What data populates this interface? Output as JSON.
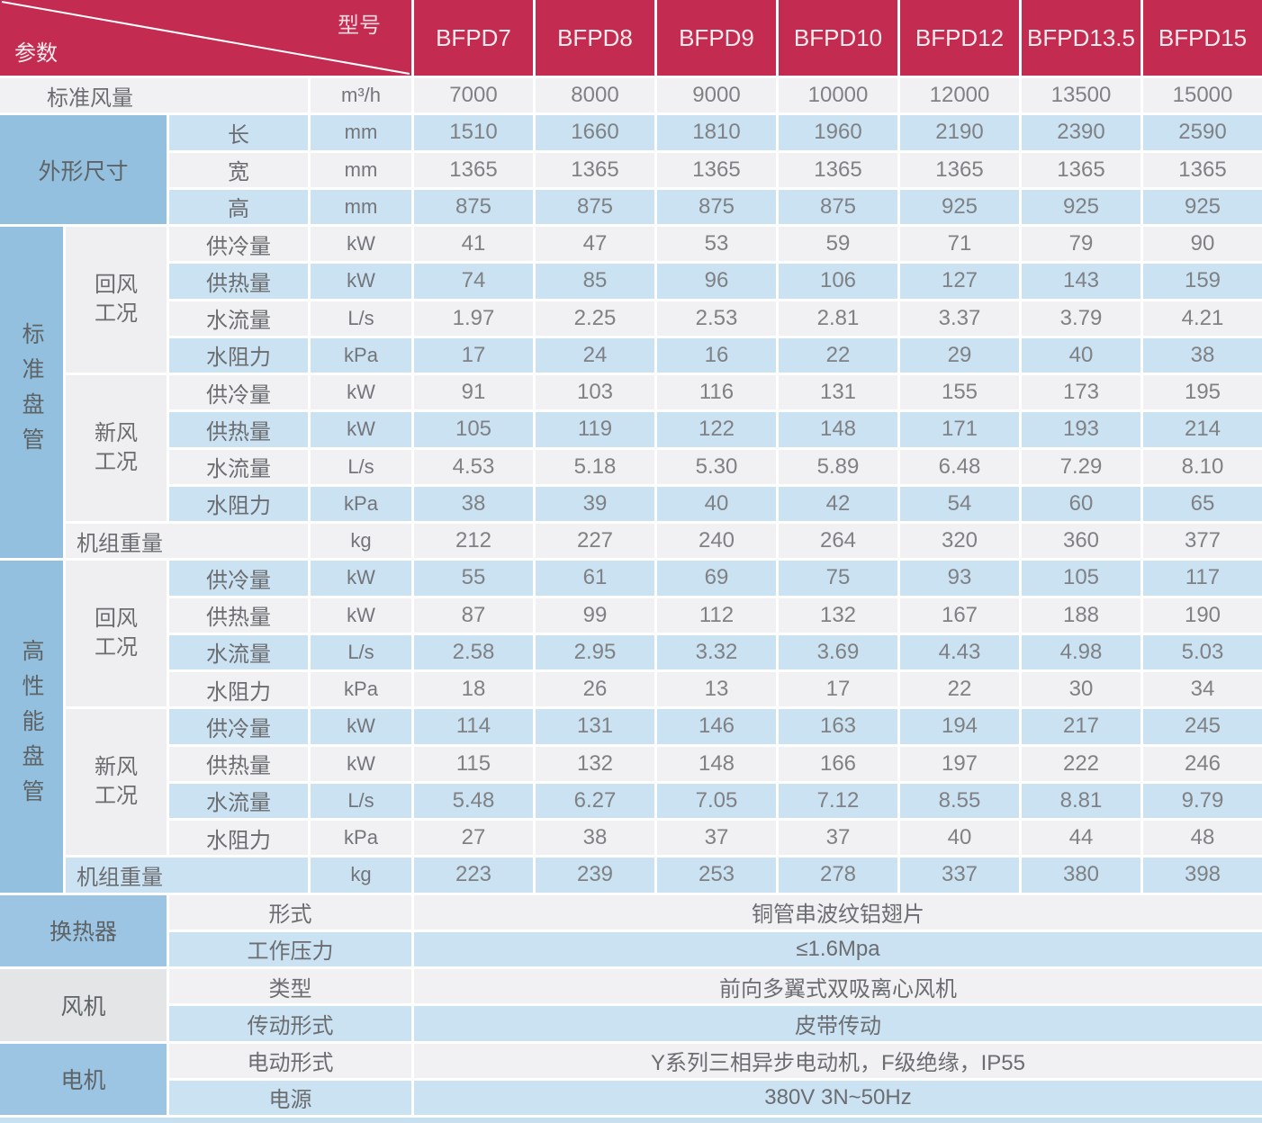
{
  "colors": {
    "header_red": "#C32B50",
    "group_blue": "#93C0DF",
    "panel_blue": "#9CC5E4",
    "panel_gray": "#E4E5E7",
    "row_gray": "#F1F1F3",
    "row_blue": "#CBE2F2"
  },
  "header": {
    "corner_top_label": "型号",
    "corner_bottom_label": "参数",
    "models": [
      "BFPD7",
      "BFPD8",
      "BFPD9",
      "BFPD10",
      "BFPD12",
      "BFPD13.5",
      "BFPD15"
    ]
  },
  "airflow": {
    "label": "标准风量",
    "unit": "m³/h",
    "values": [
      "7000",
      "8000",
      "9000",
      "10000",
      "12000",
      "13500",
      "15000"
    ]
  },
  "dimensions": {
    "group": "外形尺寸",
    "rows": [
      {
        "label": "长",
        "unit": "mm",
        "values": [
          "1510",
          "1660",
          "1810",
          "1960",
          "2190",
          "2390",
          "2590"
        ]
      },
      {
        "label": "宽",
        "unit": "mm",
        "values": [
          "1365",
          "1365",
          "1365",
          "1365",
          "1365",
          "1365",
          "1365"
        ]
      },
      {
        "label": "高",
        "unit": "mm",
        "values": [
          "875",
          "875",
          "875",
          "875",
          "925",
          "925",
          "925"
        ]
      }
    ]
  },
  "standard_coil": {
    "group": "标准盘管",
    "return_air": {
      "label": "回风工况",
      "rows": [
        {
          "label": "供冷量",
          "unit": "kW",
          "values": [
            "41",
            "47",
            "53",
            "59",
            "71",
            "79",
            "90"
          ]
        },
        {
          "label": "供热量",
          "unit": "kW",
          "values": [
            "74",
            "85",
            "96",
            "106",
            "127",
            "143",
            "159"
          ]
        },
        {
          "label": "水流量",
          "unit": "L/s",
          "values": [
            "1.97",
            "2.25",
            "2.53",
            "2.81",
            "3.37",
            "3.79",
            "4.21"
          ]
        },
        {
          "label": "水阻力",
          "unit": "kPa",
          "values": [
            "17",
            "24",
            "16",
            "22",
            "29",
            "40",
            "38"
          ]
        }
      ]
    },
    "fresh_air": {
      "label": "新风工况",
      "rows": [
        {
          "label": "供冷量",
          "unit": "kW",
          "values": [
            "91",
            "103",
            "116",
            "131",
            "155",
            "173",
            "195"
          ]
        },
        {
          "label": "供热量",
          "unit": "kW",
          "values": [
            "105",
            "119",
            "122",
            "148",
            "171",
            "193",
            "214"
          ]
        },
        {
          "label": "水流量",
          "unit": "L/s",
          "values": [
            "4.53",
            "5.18",
            "5.30",
            "5.89",
            "6.48",
            "7.29",
            "8.10"
          ]
        },
        {
          "label": "水阻力",
          "unit": "kPa",
          "values": [
            "38",
            "39",
            "40",
            "42",
            "54",
            "60",
            "65"
          ]
        }
      ]
    },
    "weight": {
      "label": "机组重量",
      "unit": "kg",
      "values": [
        "212",
        "227",
        "240",
        "264",
        "320",
        "360",
        "377"
      ]
    }
  },
  "high_performance_coil": {
    "group": "高性能盘管",
    "return_air": {
      "label": "回风工况",
      "rows": [
        {
          "label": "供冷量",
          "unit": "kW",
          "values": [
            "55",
            "61",
            "69",
            "75",
            "93",
            "105",
            "117"
          ]
        },
        {
          "label": "供热量",
          "unit": "kW",
          "values": [
            "87",
            "99",
            "112",
            "132",
            "167",
            "188",
            "190"
          ]
        },
        {
          "label": "水流量",
          "unit": "L/s",
          "values": [
            "2.58",
            "2.95",
            "3.32",
            "3.69",
            "4.43",
            "4.98",
            "5.03"
          ]
        },
        {
          "label": "水阻力",
          "unit": "kPa",
          "values": [
            "18",
            "26",
            "13",
            "17",
            "22",
            "30",
            "34"
          ]
        }
      ]
    },
    "fresh_air": {
      "label": "新风工况",
      "rows": [
        {
          "label": "供冷量",
          "unit": "kW",
          "values": [
            "114",
            "131",
            "146",
            "163",
            "194",
            "217",
            "245"
          ]
        },
        {
          "label": "供热量",
          "unit": "kW",
          "values": [
            "115",
            "132",
            "148",
            "166",
            "197",
            "222",
            "246"
          ]
        },
        {
          "label": "水流量",
          "unit": "L/s",
          "values": [
            "5.48",
            "6.27",
            "7.05",
            "7.12",
            "8.55",
            "8.81",
            "9.79"
          ]
        },
        {
          "label": "水阻力",
          "unit": "kPa",
          "values": [
            "27",
            "38",
            "37",
            "37",
            "40",
            "44",
            "48"
          ]
        }
      ]
    },
    "weight": {
      "label": "机组重量",
      "unit": "kg",
      "values": [
        "223",
        "239",
        "253",
        "278",
        "337",
        "380",
        "398"
      ]
    }
  },
  "specs": {
    "heat_exchanger": {
      "group": "换热器",
      "rows": [
        {
          "label": "形式",
          "value": "铜管串波纹铝翅片"
        },
        {
          "label": "工作压力",
          "value": "≤1.6Mpa"
        }
      ]
    },
    "fan": {
      "group": "风机",
      "rows": [
        {
          "label": "类型",
          "value": "前向多翼式双吸离心风机"
        },
        {
          "label": "传动形式",
          "value": "皮带传动"
        }
      ]
    },
    "motor": {
      "group": "电机",
      "rows": [
        {
          "label": "电动形式",
          "value": "Y系列三相异步电动机，F级绝缘，IP55"
        },
        {
          "label": "电源",
          "value": "380V 3N~50Hz"
        }
      ]
    }
  }
}
